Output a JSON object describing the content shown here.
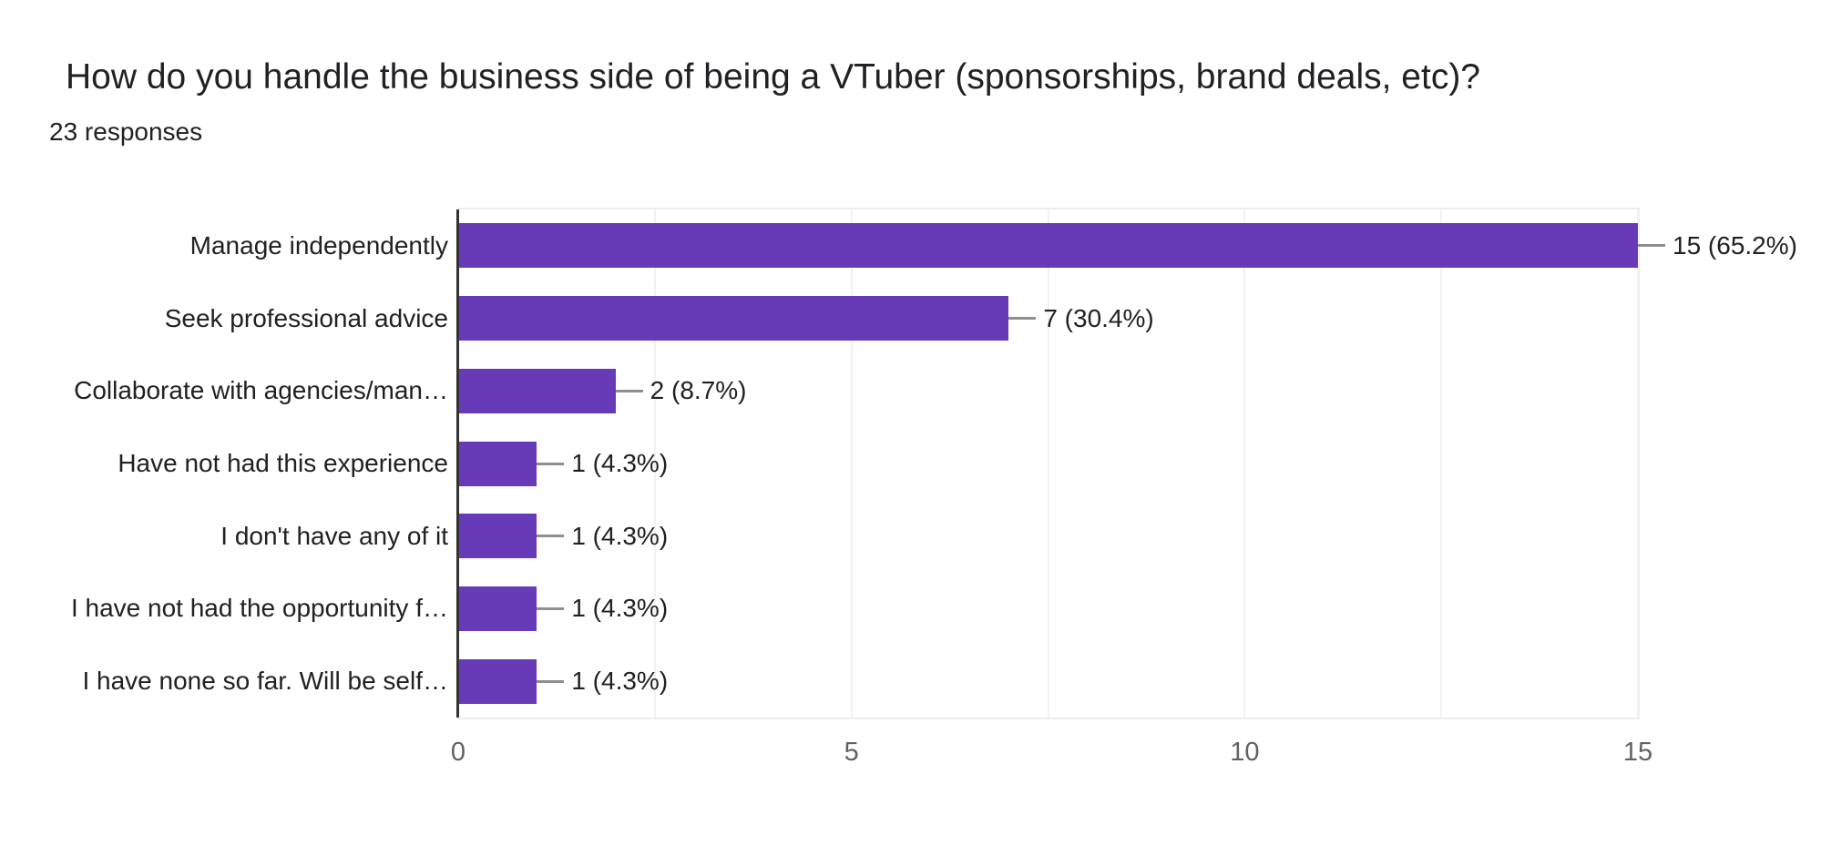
{
  "header": {
    "title": "How do you handle the business side of being a VTuber (sponsorships, brand deals, etc)?",
    "subtitle": "23 responses"
  },
  "chart_data": {
    "type": "bar",
    "orientation": "horizontal",
    "title": "How do you handle the business side of being a VTuber (sponsorships, brand deals, etc)?",
    "subtitle": "23 responses",
    "total_responses": 23,
    "categories": [
      "Manage independently",
      "Seek professional advice",
      "Collaborate with agencies/man…",
      "Have not had this experience",
      "I don't have any of it",
      "I have not had the opportunity f…",
      "I have none so far. Will be self…"
    ],
    "values": [
      15,
      7,
      2,
      1,
      1,
      1,
      1
    ],
    "percentages": [
      65.2,
      30.4,
      8.7,
      4.3,
      4.3,
      4.3,
      4.3
    ],
    "value_labels": [
      "15 (65.2%)",
      "7 (30.4%)",
      "2 (8.7%)",
      "1 (4.3%)",
      "1 (4.3%)",
      "1 (4.3%)",
      "1 (4.3%)"
    ],
    "xlabel": "",
    "ylabel": "",
    "xlim": [
      0,
      15
    ],
    "x_ticks": [
      0,
      5,
      10,
      15
    ],
    "gridlines": [
      2.5,
      5,
      7.5,
      10,
      12.5,
      15
    ],
    "grid": true,
    "legend": "none",
    "colors": {
      "bar": "#673ab7",
      "axis_line": "#333333",
      "gridline": "#f2f2f2",
      "connector": "#8f8f8f",
      "text": "#212121",
      "tick_text": "#616161",
      "background": "#ffffff"
    }
  }
}
